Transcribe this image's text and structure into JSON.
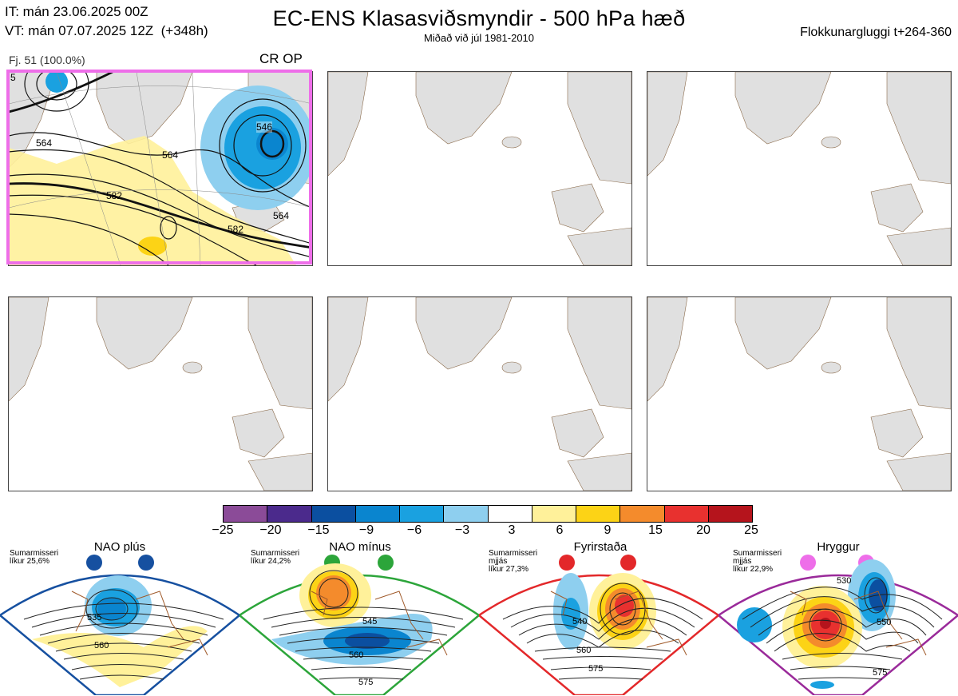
{
  "header": {
    "init_time": "IT: mán 23.06.2025 00Z",
    "valid_time": "VT: mán 07.07.2025 12Z  (+348h)",
    "title": "EC-ENS Klasasviðsmyndir - 500 hPa hæð",
    "subtitle": "Miðað við júl 1981-2010",
    "window": "Flokkunargluggi t+264-360"
  },
  "panel1": {
    "member_count": "Fj. 51 (100.0%)",
    "tag": "CR OP",
    "contour_labels": [
      "546",
      "564",
      "564",
      "582",
      "564",
      "582",
      "5"
    ]
  },
  "colorbar": {
    "ticks": [
      "−25",
      "−20",
      "−15",
      "−9",
      "−6",
      "−3",
      "3",
      "6",
      "9",
      "15",
      "20",
      "25"
    ],
    "colors": [
      "#8b4b98",
      "#4b2a8c",
      "#0b4fa0",
      "#0a85cf",
      "#1aa1e0",
      "#8ecfef",
      "#ffffff",
      "#fff19a",
      "#fcd316",
      "#f48b2c",
      "#e8312f",
      "#b5141c"
    ]
  },
  "regimes": [
    {
      "name": "NAO plús",
      "note": "Sumarmisseri\nlíkur 25,6%",
      "color": "#1650a0",
      "labels": [
        "535",
        "560"
      ],
      "dot_color": "#1650a0"
    },
    {
      "name": "NAO mínus",
      "note": "Sumarmisseri\nlíkur 24,2%",
      "color": "#2ca53a",
      "labels": [
        "545",
        "560",
        "575"
      ],
      "dot_color": "#2ca53a"
    },
    {
      "name": "Fyrirstaða",
      "note": "Sumarmisseri\nmjjás\nlíkur 27,3%",
      "color": "#e3282a",
      "labels": [
        "540",
        "560",
        "575"
      ],
      "dot_color": "#e3282a"
    },
    {
      "name": "Hryggur",
      "note": "Sumarmisseri\nmjjás\nlíkur 22,9%",
      "color": "#9a2a9a",
      "labels": [
        "530",
        "550",
        "575"
      ],
      "dot_color": "#ee6ee9"
    }
  ]
}
